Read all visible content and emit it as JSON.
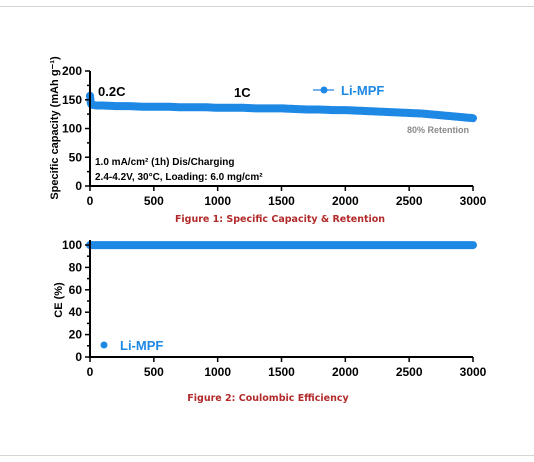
{
  "chart_data": [
    {
      "type": "scatter",
      "ylabel": "Specific capacity (mAh g⁻¹)",
      "xlim": [
        0,
        3000
      ],
      "ylim": [
        0,
        200
      ],
      "xticks": [
        0,
        500,
        1000,
        1500,
        2000,
        2500,
        3000
      ],
      "yticks": [
        0,
        50,
        100,
        150,
        200
      ],
      "series": [
        {
          "name": "Li-MPF",
          "x": [
            0,
            5,
            10,
            20,
            50,
            100,
            200,
            300,
            400,
            500,
            600,
            700,
            800,
            900,
            1000,
            1100,
            1200,
            1300,
            1400,
            1500,
            1600,
            1700,
            1800,
            1900,
            2000,
            2100,
            2200,
            2300,
            2400,
            2500,
            2600,
            2700,
            2800,
            2900,
            3000
          ],
          "y": [
            157,
            145,
            142,
            141,
            140,
            140,
            139,
            139,
            138,
            138,
            138,
            137,
            137,
            137,
            136,
            136,
            136,
            135,
            135,
            135,
            134,
            133,
            133,
            132,
            132,
            131,
            130,
            129,
            128,
            127,
            126,
            124,
            122,
            120,
            118
          ]
        }
      ],
      "annotations": {
        "rate_initial": "0.2C",
        "rate_main": "1C",
        "retention": "80% Retention",
        "condition_line1": "1.0 mA/cm² (1h) Dis/Charging",
        "condition_line2": "2.4-4.2V, 30°C, Loading: 6.0 mg/cm²"
      },
      "legend": "top-right",
      "caption": "Figure 1: Specific Capacity & Retention"
    },
    {
      "type": "scatter",
      "ylabel": "CE (%)",
      "xlim": [
        0,
        3000
      ],
      "ylim": [
        0,
        100
      ],
      "xticks": [
        0,
        500,
        1000,
        1500,
        2000,
        2500,
        3000
      ],
      "yticks": [
        0,
        20,
        40,
        60,
        80,
        100
      ],
      "series": [
        {
          "name": "Li-MPF",
          "x": [
            0,
            100,
            200,
            300,
            400,
            500,
            600,
            700,
            800,
            900,
            1000,
            1100,
            1200,
            1300,
            1400,
            1500,
            1600,
            1700,
            1800,
            1900,
            2000,
            2100,
            2200,
            2300,
            2400,
            2500,
            2600,
            2700,
            2800,
            2900,
            3000
          ],
          "y": [
            99.9,
            99.9,
            99.9,
            99.9,
            99.9,
            99.9,
            99.9,
            99.9,
            99.9,
            99.9,
            99.9,
            99.9,
            99.9,
            99.9,
            99.9,
            99.9,
            99.9,
            99.9,
            99.9,
            99.9,
            99.9,
            99.9,
            99.9,
            99.9,
            99.9,
            99.9,
            99.9,
            99.9,
            99.9,
            99.9,
            99.9
          ]
        }
      ],
      "legend": "bottom-left",
      "caption": "Figure 2: Coulombic Efficiency"
    }
  ],
  "colors": {
    "series": "#1e88e5",
    "caption": "#b22a2a",
    "retention": "#8a8a8a"
  }
}
